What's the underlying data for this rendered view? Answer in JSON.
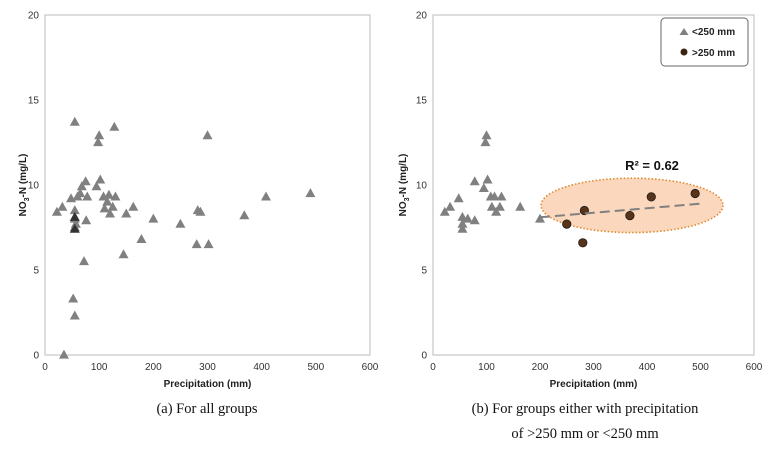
{
  "chart_data": [
    {
      "type": "scatter",
      "caption": "(a) For all groups",
      "xlabel": "Precipitation (mm)",
      "ylabel_main": "NO",
      "ylabel_sub": "3",
      "ylabel_rest": "-N (mg/L)",
      "xlim": [
        0,
        600
      ],
      "ylim": [
        0,
        20
      ],
      "xticks": [
        0,
        100,
        200,
        300,
        400,
        500,
        600
      ],
      "yticks": [
        0,
        5,
        10,
        15,
        20
      ],
      "grid": false,
      "series": [
        {
          "marker": "triangle",
          "color": "#808080",
          "points": [
            [
              22,
              8.4
            ],
            [
              32,
              8.7
            ],
            [
              35,
              0.0
            ],
            [
              48,
              9.2
            ],
            [
              52,
              3.3
            ],
            [
              55,
              13.7
            ],
            [
              55,
              8.5
            ],
            [
              55,
              7.5
            ],
            [
              55,
              8.0
            ],
            [
              55,
              2.3
            ],
            [
              57,
              7.7
            ],
            [
              60,
              9.3
            ],
            [
              65,
              9.5
            ],
            [
              68,
              9.9
            ],
            [
              72,
              5.5
            ],
            [
              75,
              10.2
            ],
            [
              76,
              7.9
            ],
            [
              78,
              9.3
            ],
            [
              95,
              9.9
            ],
            [
              98,
              12.5
            ],
            [
              100,
              12.9
            ],
            [
              102,
              10.3
            ],
            [
              108,
              9.3
            ],
            [
              110,
              8.6
            ],
            [
              115,
              9.0
            ],
            [
              118,
              9.4
            ],
            [
              120,
              8.3
            ],
            [
              125,
              8.7
            ],
            [
              128,
              13.4
            ],
            [
              130,
              9.3
            ],
            [
              145,
              5.9
            ],
            [
              150,
              8.3
            ],
            [
              163,
              8.7
            ],
            [
              178,
              6.8
            ],
            [
              200,
              8.0
            ],
            [
              250,
              7.7
            ],
            [
              280,
              6.5
            ],
            [
              282,
              8.5
            ],
            [
              287,
              8.4
            ],
            [
              300,
              12.9
            ],
            [
              302,
              6.5
            ],
            [
              368,
              8.2
            ],
            [
              408,
              9.3
            ],
            [
              490,
              9.5
            ]
          ]
        },
        {
          "marker": "triangle",
          "color": "#333333",
          "points": [
            [
              55,
              8.1
            ],
            [
              55,
              7.4
            ]
          ]
        }
      ]
    },
    {
      "type": "scatter",
      "caption_line1": "(b) For groups either with precipitation",
      "caption_line2": "of >250 mm or <250 mm",
      "xlabel": "Precipitation (mm)",
      "ylabel_main": "NO",
      "ylabel_sub": "3",
      "ylabel_rest": "-N (mg/L)",
      "xlim": [
        0,
        600
      ],
      "ylim": [
        0,
        20
      ],
      "xticks": [
        0,
        100,
        200,
        300,
        400,
        500,
        600
      ],
      "yticks": [
        0,
        5,
        10,
        15,
        20
      ],
      "grid": false,
      "legend_position": "top-right",
      "annotation": "R² = 0.62",
      "series": [
        {
          "name": "<250 mm",
          "marker": "triangle",
          "color": "#808080",
          "points": [
            [
              22,
              8.4
            ],
            [
              32,
              8.7
            ],
            [
              48,
              9.2
            ],
            [
              55,
              8.1
            ],
            [
              55,
              7.4
            ],
            [
              55,
              7.7
            ],
            [
              65,
              8.0
            ],
            [
              78,
              10.2
            ],
            [
              78,
              7.9
            ],
            [
              98,
              12.5
            ],
            [
              100,
              12.9
            ],
            [
              95,
              9.8
            ],
            [
              102,
              10.3
            ],
            [
              108,
              9.3
            ],
            [
              110,
              8.7
            ],
            [
              115,
              9.3
            ],
            [
              118,
              8.4
            ],
            [
              125,
              8.7
            ],
            [
              128,
              9.3
            ],
            [
              163,
              8.7
            ],
            [
              200,
              8.0
            ]
          ]
        },
        {
          "name": ">250 mm",
          "marker": "circle",
          "color": "#5a3418",
          "points": [
            [
              250,
              7.7
            ],
            [
              280,
              6.6
            ],
            [
              283,
              8.5
            ],
            [
              368,
              8.2
            ],
            [
              408,
              9.3
            ],
            [
              490,
              9.5
            ]
          ]
        }
      ],
      "trendline": {
        "x": [
          200,
          500
        ],
        "y": [
          8.1,
          8.9
        ]
      },
      "highlight_ellipse": {
        "center": [
          372,
          8.8
        ],
        "rx": 170,
        "ry": 1.6
      }
    }
  ]
}
